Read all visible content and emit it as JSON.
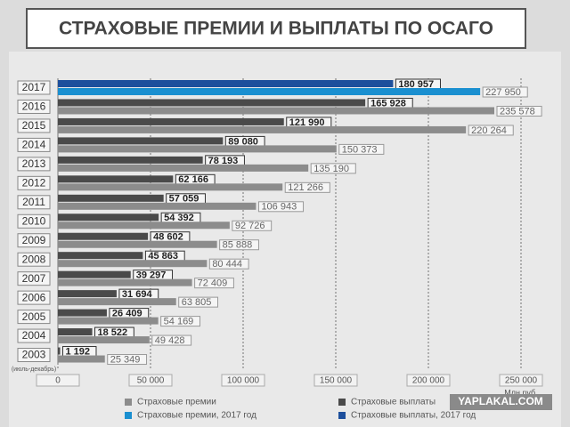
{
  "chart_data": {
    "type": "hbar",
    "title": "СТРАХОВЫЕ ПРЕМИИ И ВЫПЛАТЫ ПО ОСАГО",
    "categories": [
      "2017",
      "2016",
      "2015",
      "2014",
      "2013",
      "2012",
      "2011",
      "2010",
      "2009",
      "2008",
      "2007",
      "2006",
      "2005",
      "2004",
      "2003"
    ],
    "category_footnote": "(июль-декабрь)",
    "highlight_category": "2017",
    "series": [
      {
        "name": "Страховые выплаты",
        "color": "#4a4a4a",
        "highlight_name": "Страховые выплаты, 2017 год",
        "highlight_color": "#1d4f9c",
        "values": [
          180957,
          165928,
          121990,
          89080,
          78193,
          62166,
          57059,
          54392,
          48602,
          45863,
          39297,
          31694,
          26409,
          18522,
          1192
        ],
        "value_labels": [
          "180 957",
          "165 928",
          "121 990",
          "89 080",
          "78 193",
          "62 166",
          "57 059",
          "54 392",
          "48 602",
          "45 863",
          "39 297",
          "31 694",
          "26 409",
          "18 522",
          "1 192"
        ]
      },
      {
        "name": "Страховые премии",
        "color": "#8c8c8c",
        "highlight_name": "Страховые премии, 2017 год",
        "highlight_color": "#1a8fd0",
        "values": [
          227950,
          235578,
          220264,
          150373,
          135190,
          121266,
          106943,
          92726,
          85888,
          80444,
          72409,
          63805,
          54169,
          49428,
          25349
        ],
        "value_labels": [
          "227 950",
          "235 578",
          "220 264",
          "150 373",
          "135 190",
          "121 266",
          "106 943",
          "92 726",
          "85 888",
          "80 444",
          "72 409",
          "63 805",
          "54 169",
          "49 428",
          "25 349"
        ]
      }
    ],
    "xlim": [
      0,
      250000
    ],
    "xticks": [
      0,
      {
        "value": 50000,
        "label": "50 000"
      },
      {
        "value": 100000,
        "label": "100 000"
      },
      {
        "value": 150000,
        "label": "150 000"
      },
      {
        "value": 200000,
        "label": "200 000"
      },
      {
        "value": 250000,
        "label": "250 000"
      }
    ],
    "x_unit": "Млн руб.",
    "grid": true
  },
  "watermark": "YAPLAKAL.COM"
}
